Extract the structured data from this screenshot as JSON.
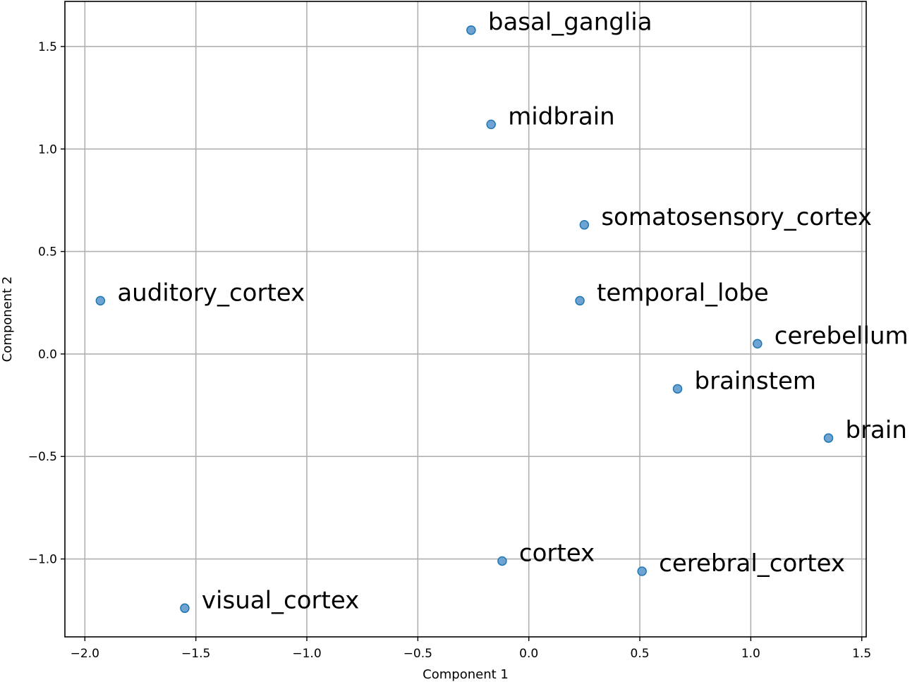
{
  "chart_data": {
    "type": "scatter",
    "title": "",
    "xlabel": "Component 1",
    "ylabel": "Component 2",
    "xlim": [
      -2.09,
      1.52
    ],
    "ylim": [
      -1.38,
      1.72
    ],
    "x_ticks": [
      -2.0,
      -1.5,
      -1.0,
      -0.5,
      0.0,
      0.5,
      1.0,
      1.5
    ],
    "y_ticks": [
      -1.0,
      -0.5,
      0.0,
      0.5,
      1.0,
      1.5
    ],
    "x_tick_labels": [
      "−2.0",
      "−1.5",
      "−1.0",
      "−0.5",
      "0.0",
      "0.5",
      "1.0",
      "1.5"
    ],
    "y_tick_labels": [
      "−1.0",
      "−0.5",
      "0.0",
      "0.5",
      "1.0",
      "1.5"
    ],
    "grid": true,
    "marker_color": "#6fa3d1",
    "marker_edge_color": "#1f77b4",
    "points": [
      {
        "label": "basal_ganglia",
        "x": -0.26,
        "y": 1.58
      },
      {
        "label": "midbrain",
        "x": -0.17,
        "y": 1.12
      },
      {
        "label": "somatosensory_cortex",
        "x": 0.25,
        "y": 0.63
      },
      {
        "label": "auditory_cortex",
        "x": -1.93,
        "y": 0.26
      },
      {
        "label": "temporal_lobe",
        "x": 0.23,
        "y": 0.26
      },
      {
        "label": "cerebellum",
        "x": 1.03,
        "y": 0.05
      },
      {
        "label": "brainstem",
        "x": 0.67,
        "y": -0.17
      },
      {
        "label": "brain",
        "x": 1.35,
        "y": -0.41
      },
      {
        "label": "cortex",
        "x": -0.12,
        "y": -1.01
      },
      {
        "label": "cerebral_cortex",
        "x": 0.51,
        "y": -1.06
      },
      {
        "label": "visual_cortex",
        "x": -1.55,
        "y": -1.24
      }
    ]
  }
}
